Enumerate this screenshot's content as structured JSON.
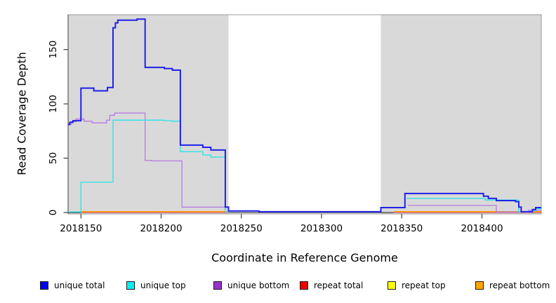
{
  "page": {
    "background": "#ffffff"
  },
  "chart_data": {
    "type": "line",
    "title": "",
    "xlabel": "Coordinate in Reference Genome",
    "ylabel": "Read Coverage Depth",
    "xlim": [
      2018142,
      2018437
    ],
    "ylim": [
      0,
      182
    ],
    "x_ticks": [
      2018150,
      2018200,
      2018250,
      2018300,
      2018350,
      2018400
    ],
    "y_ticks": [
      0,
      50,
      100,
      150
    ],
    "grid": false,
    "step_interpolation": true,
    "legend_position": "bottom",
    "panel_regions": [
      {
        "from": 2018142,
        "to": 2018242,
        "color": "#d9d9d9"
      },
      {
        "from": 2018242,
        "to": 2018337,
        "color": "#ffffff"
      },
      {
        "from": 2018337,
        "to": 2018437,
        "color": "#d9d9d9"
      }
    ],
    "style": {
      "box_border": "#999999",
      "axis_color": "#404040",
      "tick_label_color": "#000000"
    },
    "series": [
      {
        "name": "repeat top",
        "color": "#ffff00",
        "line_color": "#ffff00",
        "width": 1.2,
        "segments": [
          [
            [
              2018150,
              0.05
            ],
            [
              2018242,
              0.05
            ]
          ],
          [
            [
              2018345,
              0.05
            ],
            [
              2018437,
              0.05
            ]
          ]
        ]
      },
      {
        "name": "repeat total",
        "color": "#ee0000",
        "line_color": "#e0485f",
        "width": 1.2,
        "segments": [
          [
            [
              2018150,
              0.05
            ],
            [
              2018242,
              0.05
            ]
          ],
          [
            [
              2018345,
              0.05
            ],
            [
              2018437,
              0.05
            ]
          ]
        ]
      },
      {
        "name": "repeat bottom",
        "color": "#ffa500",
        "line_color": "#ff9d00",
        "width": 1.5,
        "segments": [
          [
            [
              2018150,
              0.8
            ],
            [
              2018242,
              0.8
            ]
          ],
          [
            [
              2018345,
              0.8
            ],
            [
              2018437,
              0.8
            ]
          ]
        ]
      },
      {
        "name": "unique bottom",
        "color": "#9932cc",
        "line_color": "#b57be3",
        "width": 1.3,
        "segments": [
          [
            [
              2018142,
              81
            ],
            [
              2018144,
              83.5
            ],
            [
              2018147,
              86
            ],
            [
              2018152,
              84
            ],
            [
              2018157,
              82.5
            ],
            [
              2018166,
              85
            ],
            [
              2018168,
              89.5
            ],
            [
              2018171,
              91.5
            ],
            [
              2018190,
              48
            ],
            [
              2018194,
              47.5
            ],
            [
              2018213,
              5
            ],
            [
              2018240,
              0.5
            ],
            [
              2018242,
              0.5
            ]
          ],
          [
            [
              2018354,
              6.5
            ],
            [
              2018409,
              0.5
            ],
            [
              2018429,
              2
            ],
            [
              2018437,
              2
            ]
          ]
        ]
      },
      {
        "name": "unique top",
        "color": "#00f0f0",
        "line_color": "#29e2e9",
        "width": 1.3,
        "segments": [
          [
            [
              2018142,
              0.6
            ],
            [
              2018150,
              28
            ],
            [
              2018170,
              85
            ],
            [
              2018202,
              84.5
            ],
            [
              2018207,
              84
            ],
            [
              2018212,
              56
            ],
            [
              2018226,
              53
            ],
            [
              2018231,
              51
            ],
            [
              2018240,
              0.6
            ],
            [
              2018242,
              0.6
            ]
          ],
          [
            [
              2018353,
              13
            ],
            [
              2018402,
              11.5
            ],
            [
              2018423,
              0.6
            ],
            [
              2018431.5,
              1.8
            ],
            [
              2018433.5,
              3.5
            ],
            [
              2018437,
              3.5
            ]
          ]
        ]
      },
      {
        "name": "unique total",
        "color": "#0000f5",
        "line_color": "#2021e9",
        "width": 2,
        "segments": [
          [
            [
              2018142,
              81
            ],
            [
              2018143,
              83
            ],
            [
              2018145,
              84.5
            ],
            [
              2018150,
              114.5
            ],
            [
              2018158,
              112
            ],
            [
              2018166.5,
              115
            ],
            [
              2018170,
              170
            ],
            [
              2018171.5,
              174.5
            ],
            [
              2018173,
              177
            ],
            [
              2018185,
              178
            ],
            [
              2018190,
              133.5
            ],
            [
              2018202,
              132.5
            ],
            [
              2018207,
              131
            ],
            [
              2018212,
              62
            ],
            [
              2018226,
              60
            ],
            [
              2018231,
              57.5
            ],
            [
              2018240,
              5
            ],
            [
              2018242,
              1.5
            ],
            [
              2018261,
              0.7
            ],
            [
              2018337,
              4.5
            ],
            [
              2018352,
              17.5
            ],
            [
              2018401,
              15
            ],
            [
              2018404,
              13
            ],
            [
              2018409,
              11
            ],
            [
              2018421,
              10
            ],
            [
              2018423,
              5
            ],
            [
              2018424.5,
              0.7
            ],
            [
              2018431.5,
              2.8
            ],
            [
              2018433.5,
              4.5
            ],
            [
              2018437,
              4.5
            ]
          ]
        ]
      }
    ]
  },
  "legend": {
    "items": [
      {
        "label": "unique total",
        "color": "#0000f5"
      },
      {
        "label": "unique top",
        "color": "#00f0f0"
      },
      {
        "label": "unique bottom",
        "color": "#9932cc"
      },
      {
        "label": "repeat total",
        "color": "#ee0000"
      },
      {
        "label": "repeat top",
        "color": "#ffff00"
      },
      {
        "label": "repeat bottom",
        "color": "#ffa500"
      }
    ]
  }
}
